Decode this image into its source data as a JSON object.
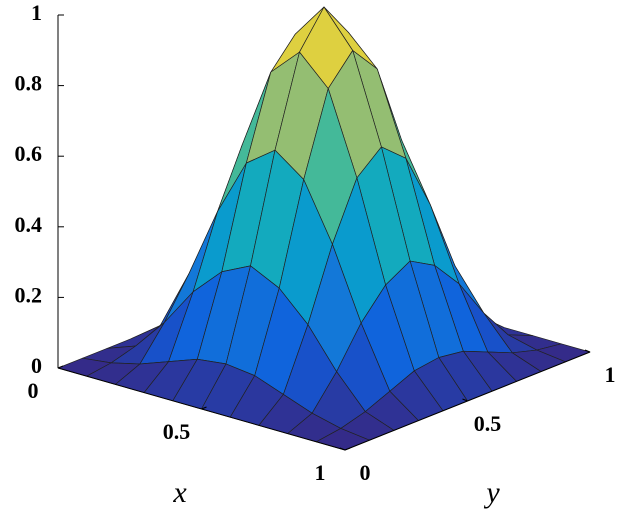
{
  "chart_data": {
    "type": "surface",
    "xlabel": "x",
    "ylabel": "y",
    "x": [
      0,
      0.1,
      0.2,
      0.3,
      0.4,
      0.5,
      0.6,
      0.7,
      0.8,
      0.9,
      1
    ],
    "y": [
      0,
      0.1,
      0.2,
      0.3,
      0.4,
      0.5,
      0.6,
      0.7,
      0.8,
      0.9,
      1
    ],
    "z": [
      [
        0,
        0,
        0,
        0,
        0,
        0,
        0,
        0,
        0,
        0,
        0
      ],
      [
        0,
        0.01,
        0.03,
        0.06,
        0.09,
        0.1,
        0.09,
        0.06,
        0.03,
        0.01,
        0
      ],
      [
        0,
        0.03,
        0.12,
        0.23,
        0.31,
        0.35,
        0.31,
        0.23,
        0.12,
        0.03,
        0
      ],
      [
        0,
        0.06,
        0.23,
        0.43,
        0.59,
        0.65,
        0.59,
        0.43,
        0.23,
        0.06,
        0
      ],
      [
        0,
        0.09,
        0.31,
        0.59,
        0.82,
        0.9,
        0.82,
        0.59,
        0.31,
        0.09,
        0
      ],
      [
        0,
        0.1,
        0.35,
        0.65,
        0.9,
        1,
        0.9,
        0.65,
        0.35,
        0.1,
        0
      ],
      [
        0,
        0.09,
        0.31,
        0.59,
        0.82,
        0.9,
        0.82,
        0.59,
        0.31,
        0.09,
        0
      ],
      [
        0,
        0.06,
        0.23,
        0.43,
        0.59,
        0.65,
        0.59,
        0.43,
        0.23,
        0.06,
        0
      ],
      [
        0,
        0.03,
        0.12,
        0.23,
        0.31,
        0.35,
        0.31,
        0.23,
        0.12,
        0.03,
        0
      ],
      [
        0,
        0.01,
        0.03,
        0.06,
        0.09,
        0.1,
        0.09,
        0.06,
        0.03,
        0.01,
        0
      ],
      [
        0,
        0,
        0,
        0,
        0,
        0,
        0,
        0,
        0,
        0,
        0
      ]
    ],
    "xlim": [
      0,
      1
    ],
    "ylim": [
      0,
      1
    ],
    "zlim": [
      0,
      1
    ],
    "xticks": [
      0,
      0.5,
      1
    ],
    "yticks": [
      0,
      0.5,
      1
    ],
    "zticks": [
      0,
      0.2,
      0.4,
      0.6,
      0.8,
      1
    ],
    "colormap": [
      "#352a87",
      "#0f5cdd",
      "#1481d6",
      "#06a4ca",
      "#2eb7a4",
      "#87bf77",
      "#d1bb59",
      "#f9fb0e"
    ]
  }
}
